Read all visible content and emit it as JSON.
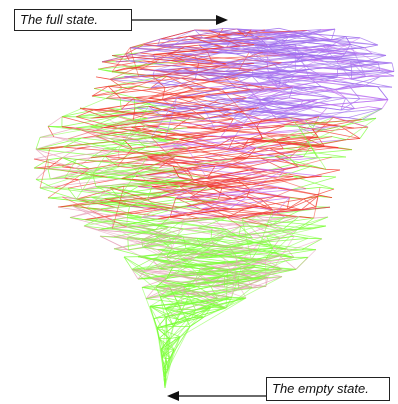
{
  "labels": {
    "full_state": "The full state.",
    "empty_state": "The empty state."
  },
  "colors": {
    "red": "#f23a2e",
    "green": "#7dff3a",
    "purple": "#a070ee",
    "pink": "#e6a0b8",
    "violet": "#c66ef0",
    "arrow": "#111111"
  }
}
